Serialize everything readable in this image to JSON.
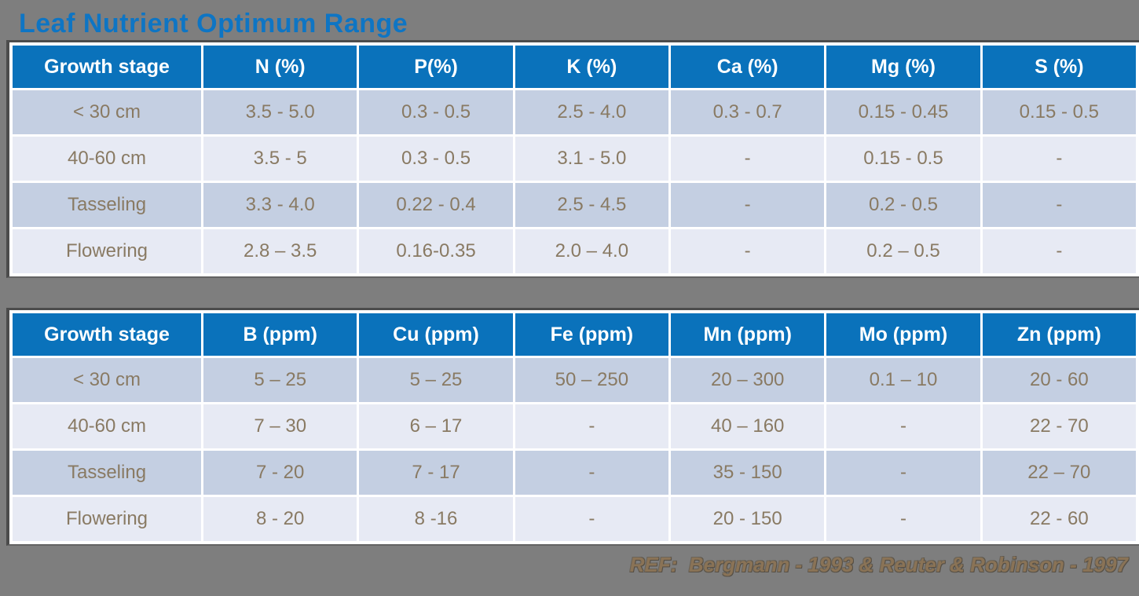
{
  "page": {
    "title": "Leaf Nutrient Optimum Range",
    "footer_ref": "REF:  Bergmann - 1993 & Reuter & Robinson - 1997"
  },
  "colors": {
    "background": "#7e7e7e",
    "title_blue": "#0e75c4",
    "header_blue": "#0a72bb",
    "row_odd": "#c4cfe2",
    "row_even": "#e7eaf4",
    "cell_text": "#897a63",
    "header_text": "#ffffff",
    "ref_text": "#8a7356",
    "table_border_dark": "#4c4c4c"
  },
  "macro_table": {
    "columns": [
      "Growth stage",
      "N (%)",
      "P(%)",
      "K (%)",
      "Ca (%)",
      "Mg (%)",
      "S (%)"
    ],
    "rows": [
      [
        "< 30 cm",
        "3.5 - 5.0",
        "0.3 - 0.5",
        "2.5 - 4.0",
        "0.3 - 0.7",
        "0.15 - 0.45",
        "0.15 - 0.5"
      ],
      [
        "40-60 cm",
        "3.5 - 5",
        "0.3 - 0.5",
        "3.1 - 5.0",
        "-",
        "0.15 - 0.5",
        "-"
      ],
      [
        "Tasseling",
        "3.3 - 4.0",
        "0.22 - 0.4",
        "2.5 - 4.5",
        "-",
        "0.2 - 0.5",
        "-"
      ],
      [
        "Flowering",
        "2.8 – 3.5",
        "0.16-0.35",
        "2.0 – 4.0",
        "-",
        "0.2 – 0.5",
        "-"
      ]
    ]
  },
  "micro_table": {
    "columns": [
      "Growth stage",
      "B (ppm)",
      "Cu (ppm)",
      "Fe (ppm)",
      "Mn (ppm)",
      "Mo (ppm)",
      "Zn (ppm)"
    ],
    "rows": [
      [
        "< 30 cm",
        "5 – 25",
        "5 – 25",
        "50 – 250",
        "20 – 300",
        "0.1 – 10",
        "20 - 60"
      ],
      [
        "40-60 cm",
        "7 – 30",
        "6 – 17",
        "-",
        "40 – 160",
        "-",
        "22 - 70"
      ],
      [
        "Tasseling",
        "7 - 20",
        "7 - 17",
        "-",
        "35 - 150",
        "-",
        "22 – 70"
      ],
      [
        "Flowering",
        "8 - 20",
        "8 -16",
        "-",
        "20 - 150",
        "-",
        "22 - 60"
      ]
    ]
  }
}
